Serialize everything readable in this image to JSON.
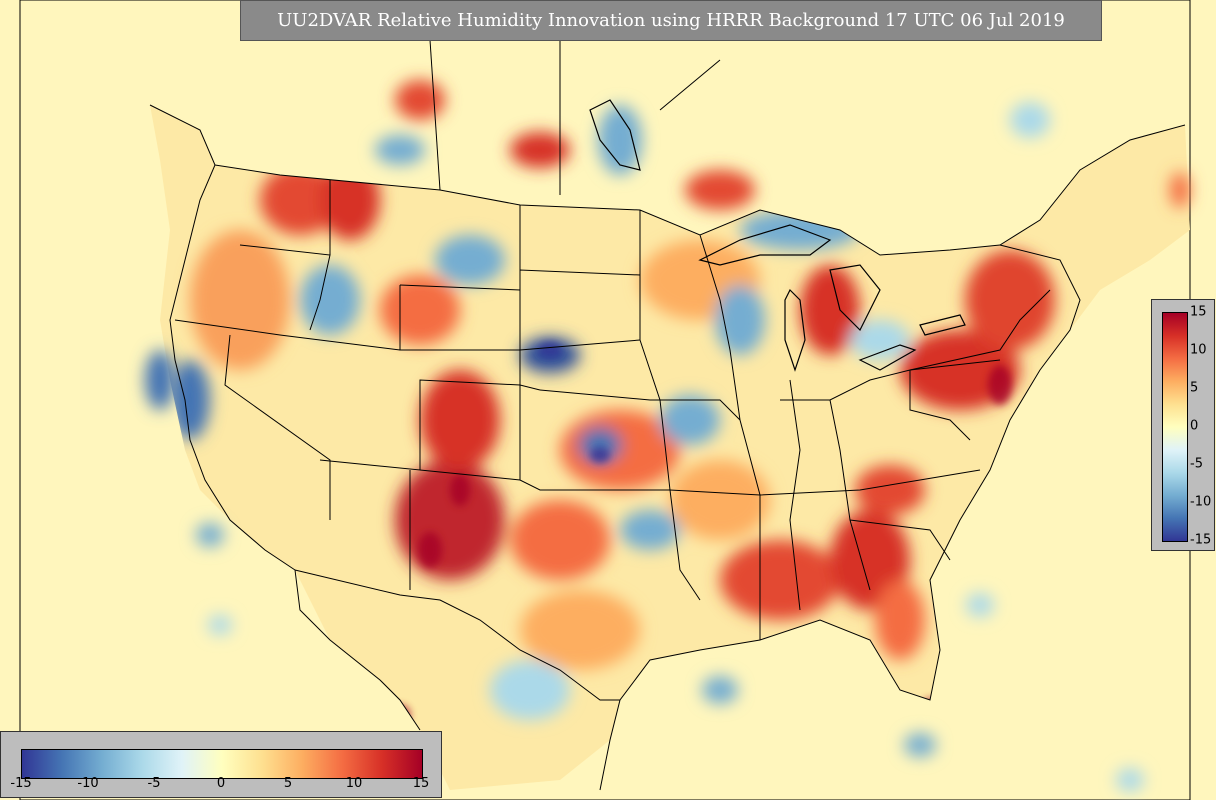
{
  "title": "UU2DVAR Relative Humidity Innovation using HRRR Background 17 UTC 06 Jul 2019",
  "colorbar": {
    "ticks_horizontal": [
      "-15",
      "-10",
      "-5",
      "0",
      "5",
      "10",
      "15"
    ],
    "ticks_vertical": [
      "15",
      "10",
      "5",
      "0",
      "-5",
      "-10",
      "-15"
    ],
    "range": [
      -15,
      15
    ],
    "colors": [
      "#313695",
      "#4575b4",
      "#74add1",
      "#abd9e9",
      "#e0f3f8",
      "#ffffbf",
      "#fee090",
      "#fdae61",
      "#f46d43",
      "#d73027",
      "#a50026"
    ]
  },
  "map": {
    "background_color": "#fff7c0",
    "ocean_color": "#fff6bd",
    "boundary_color": "#000000"
  }
}
